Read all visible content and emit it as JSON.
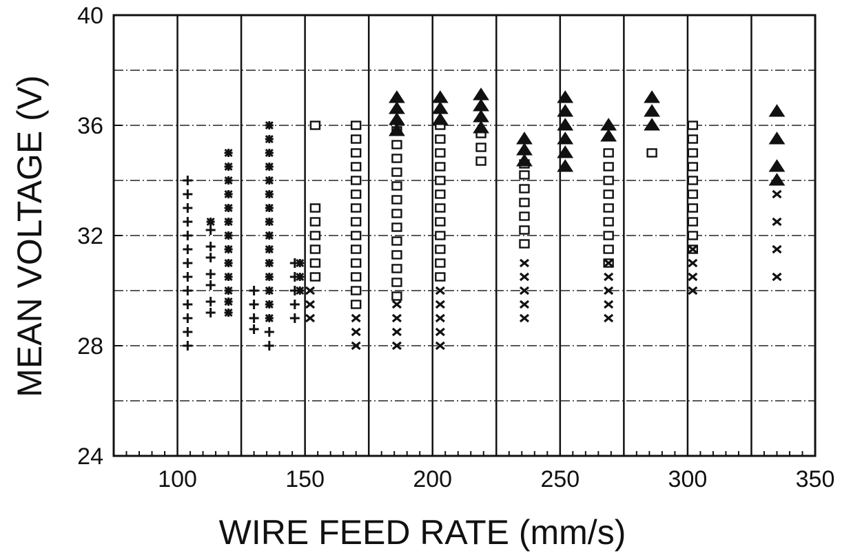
{
  "chart_data": {
    "type": "scatter",
    "title": "",
    "xlabel": "WIRE FEED RATE (mm/s)",
    "ylabel": "MEAN VOLTAGE (V)",
    "xlim": [
      75,
      350
    ],
    "ylim": [
      24,
      40
    ],
    "xticks": [
      100,
      150,
      200,
      250,
      300,
      350
    ],
    "yticks": [
      24,
      28,
      32,
      36,
      40
    ],
    "x_minor_step": 5,
    "vertical_grid": [
      75,
      100,
      125,
      150,
      175,
      200,
      225,
      250,
      275,
      300,
      325
    ],
    "horizontal_grid": [
      26,
      28,
      30,
      32,
      34,
      36,
      38
    ],
    "grid": true,
    "legend": "none",
    "series": [
      {
        "marker": "plus",
        "points": [
          [
            104,
            28
          ],
          [
            104,
            28.5
          ],
          [
            104,
            29
          ],
          [
            104,
            29.5
          ],
          [
            104,
            30
          ],
          [
            104,
            30.5
          ],
          [
            104,
            31
          ],
          [
            104,
            31.5
          ],
          [
            104,
            32
          ],
          [
            104,
            32.5
          ],
          [
            104,
            33
          ],
          [
            104,
            33.5
          ],
          [
            104,
            34
          ],
          [
            113,
            29.2
          ],
          [
            113,
            29.6
          ],
          [
            113,
            30.2
          ],
          [
            113,
            30.6
          ],
          [
            113,
            31.2
          ],
          [
            113,
            31.6
          ],
          [
            113,
            32.2
          ],
          [
            130,
            28.6
          ],
          [
            130,
            29
          ],
          [
            130,
            29.5
          ],
          [
            130,
            30
          ],
          [
            136,
            28
          ],
          [
            136,
            28.5
          ],
          [
            146,
            29
          ],
          [
            146,
            29.5
          ],
          [
            146,
            30
          ],
          [
            146,
            30.5
          ],
          [
            146,
            31
          ]
        ]
      },
      {
        "marker": "asterisk",
        "points": [
          [
            113,
            32.5
          ],
          [
            120,
            29.2
          ],
          [
            120,
            29.6
          ],
          [
            120,
            30
          ],
          [
            120,
            30.5
          ],
          [
            120,
            31
          ],
          [
            120,
            31.5
          ],
          [
            120,
            32
          ],
          [
            120,
            32.5
          ],
          [
            120,
            33
          ],
          [
            120,
            33.5
          ],
          [
            120,
            34
          ],
          [
            120,
            34.5
          ],
          [
            120,
            35
          ],
          [
            136,
            29
          ],
          [
            136,
            29.5
          ],
          [
            136,
            30
          ],
          [
            136,
            30.5
          ],
          [
            136,
            31
          ],
          [
            136,
            31.5
          ],
          [
            136,
            32
          ],
          [
            136,
            32.5
          ],
          [
            136,
            33
          ],
          [
            136,
            33.5
          ],
          [
            136,
            34
          ],
          [
            136,
            34.5
          ],
          [
            136,
            35
          ],
          [
            136,
            35.5
          ],
          [
            136,
            36
          ],
          [
            148,
            30
          ],
          [
            148,
            30.5
          ],
          [
            148,
            31
          ]
        ]
      },
      {
        "marker": "square",
        "points": [
          [
            154,
            30.5
          ],
          [
            154,
            31
          ],
          [
            154,
            31.5
          ],
          [
            154,
            32
          ],
          [
            154,
            32.5
          ],
          [
            154,
            33
          ],
          [
            154,
            36
          ],
          [
            170,
            29.5
          ],
          [
            170,
            30
          ],
          [
            170,
            30.5
          ],
          [
            170,
            31
          ],
          [
            170,
            31.5
          ],
          [
            170,
            32
          ],
          [
            170,
            32.5
          ],
          [
            170,
            33
          ],
          [
            170,
            33.5
          ],
          [
            170,
            34
          ],
          [
            170,
            34.5
          ],
          [
            170,
            35
          ],
          [
            170,
            35.5
          ],
          [
            170,
            36
          ],
          [
            186,
            29.8
          ],
          [
            186,
            30.3
          ],
          [
            186,
            30.8
          ],
          [
            186,
            31.3
          ],
          [
            186,
            31.8
          ],
          [
            186,
            32.3
          ],
          [
            186,
            32.8
          ],
          [
            186,
            33.3
          ],
          [
            186,
            33.8
          ],
          [
            186,
            34.3
          ],
          [
            186,
            34.8
          ],
          [
            186,
            35.3
          ],
          [
            186,
            35.8
          ],
          [
            203,
            30.5
          ],
          [
            203,
            31
          ],
          [
            203,
            31.5
          ],
          [
            203,
            32
          ],
          [
            203,
            32.5
          ],
          [
            203,
            33
          ],
          [
            203,
            33.5
          ],
          [
            203,
            34
          ],
          [
            203,
            34.5
          ],
          [
            203,
            35
          ],
          [
            203,
            35.5
          ],
          [
            203,
            36
          ],
          [
            219,
            34.7
          ],
          [
            219,
            35.2
          ],
          [
            219,
            35.7
          ],
          [
            236,
            31.7
          ],
          [
            236,
            32.2
          ],
          [
            236,
            32.7
          ],
          [
            236,
            33.2
          ],
          [
            236,
            33.7
          ],
          [
            236,
            34.2
          ],
          [
            236,
            34.6
          ],
          [
            269,
            31
          ],
          [
            269,
            31.5
          ],
          [
            269,
            32
          ],
          [
            269,
            32.5
          ],
          [
            269,
            33
          ],
          [
            269,
            33.5
          ],
          [
            269,
            34
          ],
          [
            269,
            34.5
          ],
          [
            269,
            35
          ],
          [
            286,
            35
          ],
          [
            302,
            31.5
          ],
          [
            302,
            32
          ],
          [
            302,
            32.5
          ],
          [
            302,
            33
          ],
          [
            302,
            33.5
          ],
          [
            302,
            34
          ],
          [
            302,
            34.5
          ],
          [
            302,
            35
          ],
          [
            302,
            35.5
          ],
          [
            302,
            36
          ]
        ]
      },
      {
        "marker": "x",
        "points": [
          [
            152,
            29
          ],
          [
            152,
            29.5
          ],
          [
            152,
            30
          ],
          [
            170,
            28
          ],
          [
            170,
            28.5
          ],
          [
            170,
            29
          ],
          [
            186,
            28
          ],
          [
            186,
            28.5
          ],
          [
            186,
            29
          ],
          [
            186,
            29.5
          ],
          [
            203,
            28
          ],
          [
            203,
            28.5
          ],
          [
            203,
            29
          ],
          [
            203,
            29.5
          ],
          [
            203,
            30
          ],
          [
            236,
            29
          ],
          [
            236,
            29.5
          ],
          [
            236,
            30
          ],
          [
            236,
            30.5
          ],
          [
            236,
            31
          ],
          [
            269,
            29
          ],
          [
            269,
            29.5
          ],
          [
            269,
            30
          ],
          [
            269,
            30.5
          ],
          [
            269,
            31
          ],
          [
            302,
            30
          ],
          [
            302,
            30.5
          ],
          [
            302,
            31
          ],
          [
            302,
            31.5
          ],
          [
            335,
            30.5
          ],
          [
            335,
            31.5
          ],
          [
            335,
            32.5
          ],
          [
            335,
            33.5
          ]
        ]
      },
      {
        "marker": "triangle",
        "points": [
          [
            186,
            35.8
          ],
          [
            186,
            36.2
          ],
          [
            186,
            36.6
          ],
          [
            186,
            37
          ],
          [
            203,
            36.2
          ],
          [
            203,
            36.6
          ],
          [
            203,
            37
          ],
          [
            219,
            35.9
          ],
          [
            219,
            36.3
          ],
          [
            219,
            36.7
          ],
          [
            219,
            37.1
          ],
          [
            236,
            34.7
          ],
          [
            236,
            35.1
          ],
          [
            236,
            35.5
          ],
          [
            252,
            34.5
          ],
          [
            252,
            35
          ],
          [
            252,
            35.5
          ],
          [
            252,
            36
          ],
          [
            252,
            36.5
          ],
          [
            252,
            37
          ],
          [
            269,
            35.6
          ],
          [
            269,
            36
          ],
          [
            286,
            36
          ],
          [
            286,
            36.5
          ],
          [
            286,
            37
          ],
          [
            335,
            34
          ],
          [
            335,
            34.5
          ],
          [
            335,
            35.5
          ],
          [
            335,
            36.5
          ]
        ]
      }
    ]
  }
}
